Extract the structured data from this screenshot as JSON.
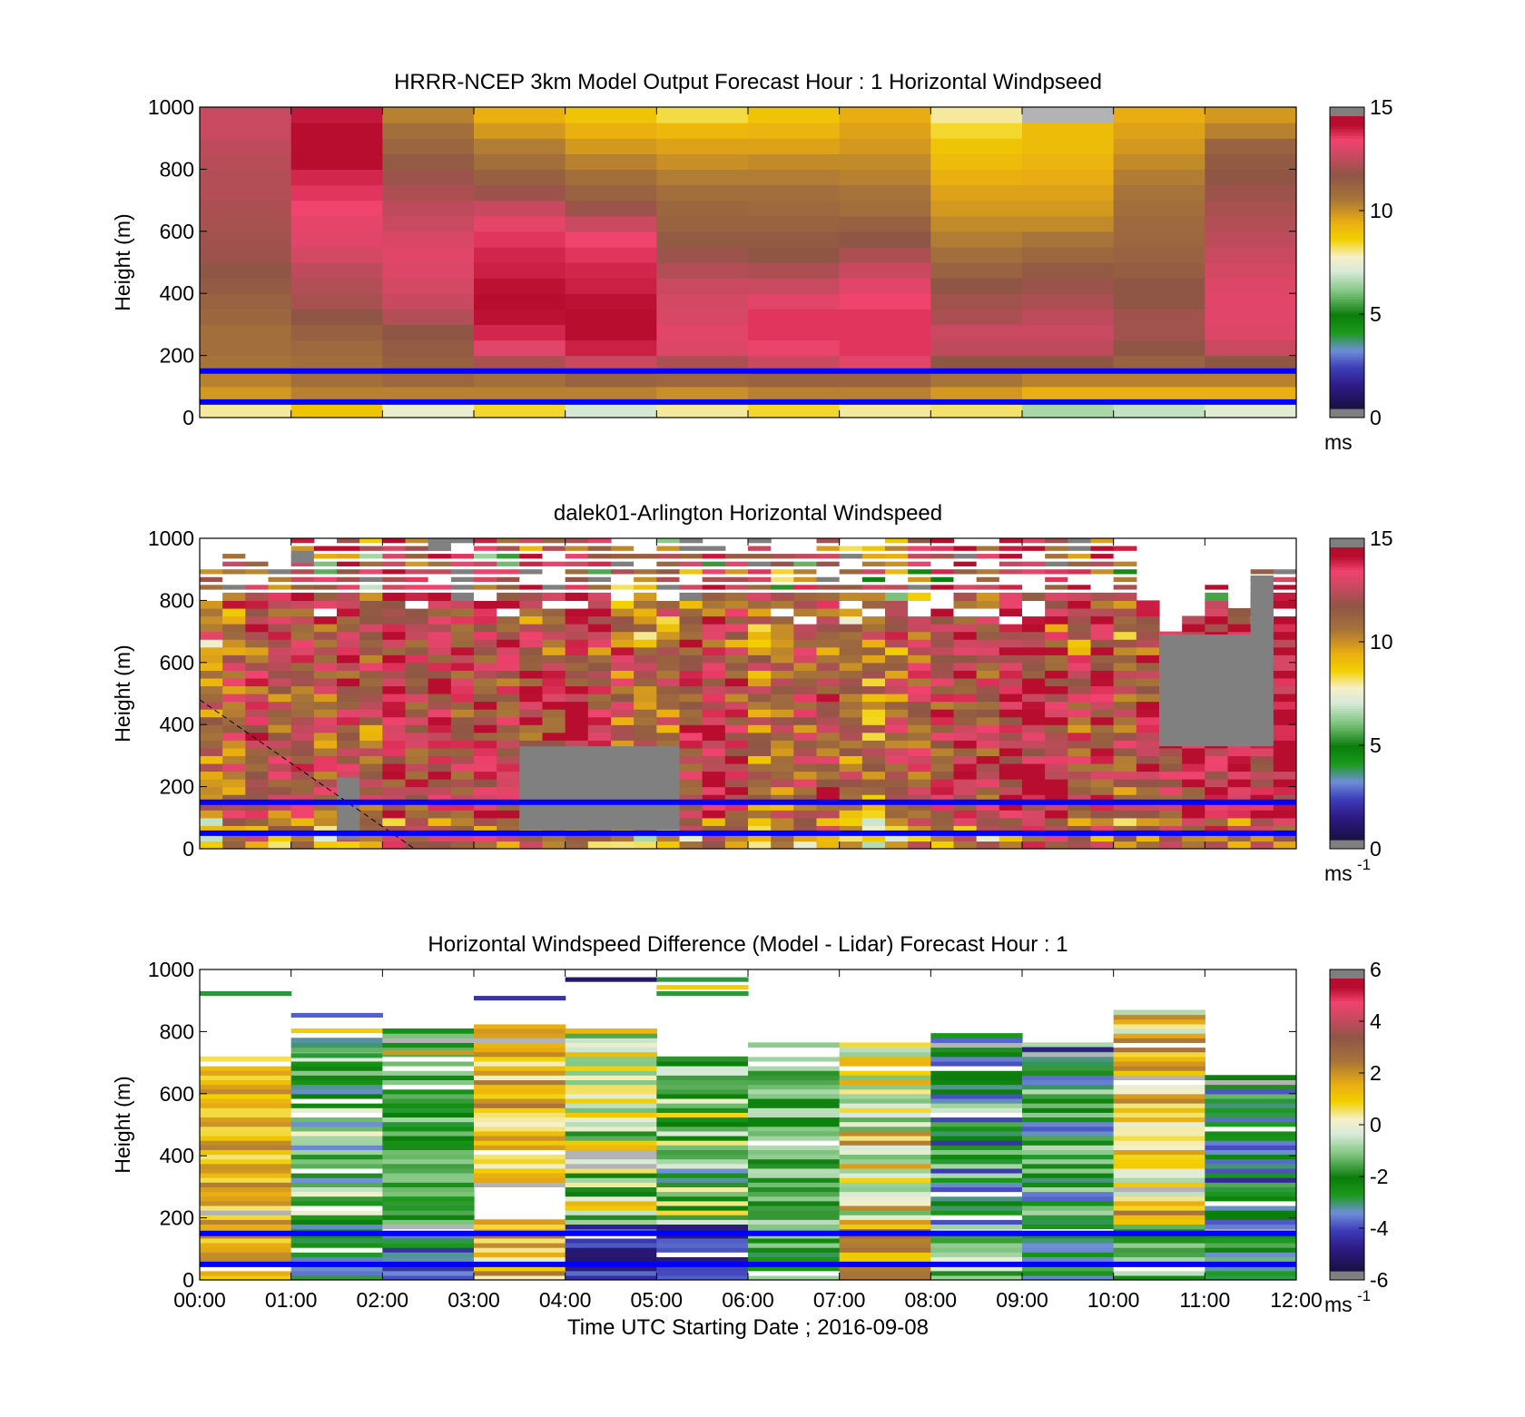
{
  "chart_data": [
    {
      "type": "heatmap",
      "title": "HRRR-NCEP 3km Model Output   Forecast Hour : 1 Horizontal Windpseed",
      "ylabel": "Height (m)",
      "xlabel": "",
      "ylim": [
        0,
        1000
      ],
      "yticks": [
        "0",
        "200",
        "400",
        "600",
        "800",
        "1000"
      ],
      "xlim": [
        0,
        12
      ],
      "colorbar": {
        "min": 0,
        "max": 15,
        "ticks": [
          "0",
          "5",
          "10",
          "15"
        ],
        "unit": "ms",
        "unit_sup": ""
      },
      "ref_lines_m": [
        150,
        50
      ],
      "ref_line_color": "#0000ff",
      "time_columns": 12,
      "heights_m": [
        25,
        75,
        125,
        175,
        225,
        275,
        325,
        375,
        425,
        475,
        525,
        575,
        625,
        675,
        725,
        775,
        825,
        875,
        925,
        975
      ],
      "columns": [
        [
          8,
          10,
          10.5,
          10.8,
          11,
          11,
          11.3,
          11.5,
          11.8,
          12,
          12.2,
          12.3,
          12.4,
          12.5,
          12.6,
          12.6,
          12.7,
          12.8,
          13,
          13
        ],
        [
          9,
          10.5,
          11,
          11,
          11.2,
          11.6,
          12,
          12.4,
          12.6,
          12.8,
          13.2,
          13.5,
          13.6,
          13.8,
          14,
          14.2,
          14.6,
          14.8,
          14.6,
          14.4
        ],
        [
          7.5,
          10.5,
          11.3,
          11.6,
          11.8,
          12,
          12.6,
          13,
          13.2,
          13.4,
          13.5,
          13.3,
          13,
          12.8,
          12.5,
          12.2,
          11.8,
          11.4,
          11,
          10.5
        ],
        [
          8.5,
          10.5,
          11,
          12.5,
          13.5,
          14.2,
          14.5,
          14.6,
          14.5,
          14.3,
          14.2,
          14,
          13.6,
          13,
          12.2,
          11.6,
          11,
          10.6,
          10,
          9.5
        ],
        [
          7,
          10.5,
          11.5,
          13,
          14.3,
          14.6,
          14.7,
          14.5,
          14.3,
          14.2,
          14,
          13.8,
          13,
          12.2,
          11.5,
          11,
          10.5,
          10,
          9.5,
          9
        ],
        [
          8,
          10.2,
          11.3,
          12.5,
          13.4,
          13.5,
          13.3,
          13.2,
          13,
          12.6,
          12.2,
          11.8,
          11.5,
          11.3,
          11,
          10.6,
          10.2,
          9.8,
          9.3,
          8.4
        ],
        [
          8.5,
          10.5,
          11.5,
          13,
          13.7,
          14,
          14,
          13.5,
          13,
          12.5,
          12,
          11.8,
          11.5,
          11.2,
          11,
          10.6,
          10.3,
          9.8,
          9.4,
          9
        ],
        [
          8,
          10.5,
          11.5,
          13.5,
          14,
          14,
          14,
          13.8,
          13.5,
          13,
          12.5,
          12,
          11.6,
          11,
          10.8,
          10.5,
          10.3,
          10,
          9.8,
          9.6
        ],
        [
          8.2,
          10,
          10.8,
          12,
          12.8,
          13,
          12.5,
          12.3,
          12,
          11.5,
          11,
          10.6,
          10.3,
          10,
          9.8,
          9.5,
          9.2,
          9,
          8.5,
          8
        ],
        [
          6.5,
          9.5,
          10.5,
          12,
          12.8,
          13,
          12.8,
          12.5,
          12.2,
          11.8,
          11.3,
          10.8,
          10.3,
          10,
          9.8,
          9.6,
          9.4,
          9.2,
          9.2,
          -1
        ],
        [
          6.8,
          9.5,
          10.5,
          11.5,
          12,
          12.3,
          12.3,
          12,
          12,
          11.7,
          11.5,
          11.3,
          11.2,
          11,
          10.8,
          10.6,
          10.3,
          10,
          9.8,
          9.6
        ],
        [
          7.3,
          9.5,
          10.5,
          12,
          13,
          13.4,
          13.5,
          13.5,
          13.4,
          13.2,
          13,
          12.8,
          12.6,
          12.4,
          12.2,
          12,
          11.8,
          11.5,
          10.5,
          10
        ]
      ]
    },
    {
      "type": "heatmap",
      "title": "dalek01-Arlington  Horizontal Windspeed",
      "ylabel": "Height (m)",
      "xlabel": "",
      "ylim": [
        0,
        1000
      ],
      "yticks": [
        "0",
        "200",
        "400",
        "600",
        "800",
        "1000"
      ],
      "xlim": [
        0,
        12
      ],
      "colorbar": {
        "min": 0,
        "max": 15,
        "ticks": [
          "0",
          "5",
          "10",
          "15"
        ],
        "unit": "ms",
        "unit_sup": "-1"
      },
      "ref_lines_m": [
        150,
        50
      ],
      "ref_line_color": "#0000ff",
      "time_columns": 48,
      "bin_m": 25,
      "max_height_m": [
        880,
        930,
        960,
        950,
        990,
        960,
        1000,
        990,
        1000,
        1000,
        1000,
        980,
        1000,
        1000,
        980,
        1000,
        1000,
        990,
        960,
        960,
        1000,
        1000,
        960,
        940,
        990,
        960,
        950,
        1000,
        960,
        970,
        990,
        1000,
        990,
        970,
        960,
        1000,
        990,
        1000,
        980,
        980,
        960,
        780,
        700,
        740,
        870,
        760,
        880,
        880
      ],
      "mean_speed": [
        10.5,
        11.5,
        12.5,
        12,
        12.5,
        11.8,
        12.8,
        11.5,
        13,
        12.5,
        13.5,
        12.5,
        13,
        12.5,
        12.5,
        13,
        13.5,
        12.5,
        11.5,
        11,
        11.5,
        12.5,
        13.5,
        12.5,
        11,
        11.2,
        12,
        12.5,
        11,
        10.5,
        11.5,
        12,
        12.5,
        13,
        12.5,
        13.5,
        13.8,
        13,
        12,
        12.8,
        11.5,
        12.5,
        13,
        13.5,
        14,
        13.5,
        14,
        14.5
      ],
      "missing_regions": [
        {
          "t_start": 1.5,
          "t_end": 1.75,
          "h_min": 30,
          "h_max": 230
        },
        {
          "t_start": 3.5,
          "t_end": 5.25,
          "h_min": 60,
          "h_max": 330
        },
        {
          "t_start": 10.5,
          "t_end": 11.75,
          "h_min": 330,
          "h_max": 690
        },
        {
          "t_start": 11.5,
          "t_end": 11.75,
          "h_min": 690,
          "h_max": 880
        },
        {
          "t_start": 1.0,
          "t_end": 1.25,
          "h_min": 920,
          "h_max": 960
        },
        {
          "t_start": 2.5,
          "t_end": 2.75,
          "h_min": 960,
          "h_max": 1000
        }
      ],
      "dashed_line": [
        [
          0,
          480
        ],
        [
          2.35,
          0
        ]
      ]
    },
    {
      "type": "heatmap",
      "title": "Horizontal Windspeed Difference (Model - Lidar) Forecast Hour : 1",
      "ylabel": "Height (m)",
      "xlabel": "Time UTC  Starting Date ; 2016-09-08",
      "ylim": [
        0,
        1000
      ],
      "yticks": [
        "0",
        "200",
        "400",
        "600",
        "800",
        "1000"
      ],
      "xticks": [
        "00:00",
        "01:00",
        "02:00",
        "03:00",
        "04:00",
        "05:00",
        "06:00",
        "07:00",
        "08:00",
        "09:00",
        "10:00",
        "11:00",
        "12:00"
      ],
      "xlim": [
        0,
        12
      ],
      "colorbar": {
        "min": -6,
        "max": 6,
        "ticks": [
          "-6",
          "-4",
          "-2",
          "0",
          "2",
          "4",
          "6"
        ],
        "unit": "ms",
        "unit_sup": "-1"
      },
      "ref_lines_m": [
        150,
        50
      ],
      "ref_line_color": "#0000ff",
      "time_columns": 12,
      "bin_m": 15,
      "columns": [
        {
          "top": 710,
          "mean": 1.5,
          "spread": 1.0,
          "isolated": [
            {
              "h": 920,
              "v": -3
            }
          ]
        },
        {
          "top": 780,
          "mean": -1.8,
          "spread": 2.0,
          "low": -3.0,
          "isolated": [
            {
              "h": 850,
              "v": -4
            },
            {
              "h": 800,
              "v": 1
            },
            {
              "h": 720,
              "v": -3
            }
          ]
        },
        {
          "top": 800,
          "mean": -2.0,
          "spread": 1.2,
          "low": -4.0,
          "isolated": [
            {
              "h": 730,
              "v": 2
            }
          ]
        },
        {
          "top": 830,
          "mean": 1.2,
          "spread": 1.4,
          "gap": [
            190,
            300
          ],
          "isolated": [
            {
              "h": 905,
              "v": -4.5
            }
          ]
        },
        {
          "top": 810,
          "mean": -0.5,
          "spread": 2.0,
          "low": -4.8,
          "isolated": [
            {
              "h": 965,
              "v": -5.5
            }
          ]
        },
        {
          "top": 715,
          "mean": -1.5,
          "spread": 2.4,
          "low": -4.5,
          "isolated": [
            {
              "h": 965,
              "v": -3
            },
            {
              "h": 940,
              "v": 1
            },
            {
              "h": 920,
              "v": -3
            }
          ]
        },
        {
          "top": 760,
          "mean": -1.5,
          "spread": 0.9,
          "low": -2.0,
          "isolated": []
        },
        {
          "top": 760,
          "mean": 0.5,
          "spread": 2.0,
          "low": 2.0,
          "isolated": []
        },
        {
          "top": 790,
          "mean": -2.5,
          "spread": 2.2,
          "low": -1.0,
          "isolated": []
        },
        {
          "top": 765,
          "mean": -2.5,
          "spread": 1.8,
          "low": -2.5,
          "isolated": [
            {
              "h": 740,
              "v": -5
            }
          ]
        },
        {
          "top": 860,
          "mean": 1.0,
          "spread": 1.8,
          "low": -1.8,
          "isolated": []
        },
        {
          "top": 660,
          "mean": -3.0,
          "spread": 1.8,
          "low": -2.5,
          "isolated": []
        }
      ]
    }
  ]
}
